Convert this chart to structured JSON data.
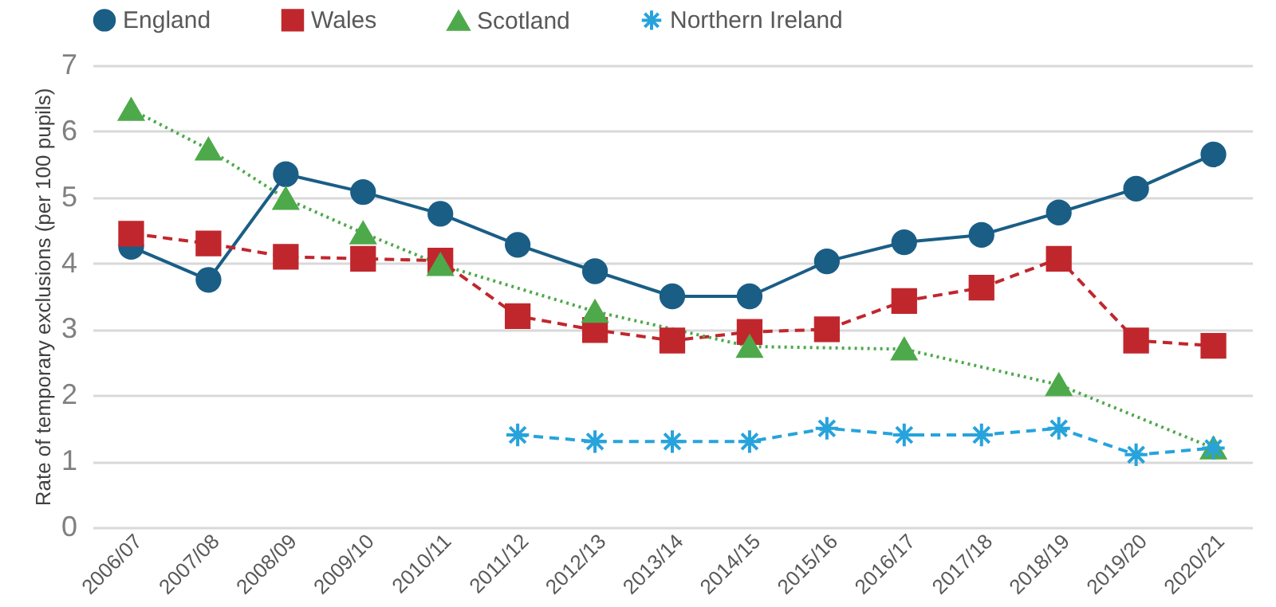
{
  "chart_data": {
    "type": "line",
    "ylabel": "Rate of temporary exclusions (per 100 pupils)",
    "categories": [
      "2006/07",
      "2007/08",
      "2008/09",
      "2009/10",
      "2010/11",
      "2011/12",
      "2012/13",
      "2013/14",
      "2014/15",
      "2015/16",
      "2016/17",
      "2017/18",
      "2018/19",
      "2019/20",
      "2020/21"
    ],
    "series": [
      {
        "name": "England",
        "color": "#1a5e86",
        "marker": "circle",
        "line_style": "solid",
        "values": [
          4.25,
          3.75,
          5.35,
          5.08,
          4.75,
          4.28,
          3.88,
          3.5,
          3.5,
          4.03,
          4.32,
          4.43,
          4.77,
          5.13,
          5.65
        ]
      },
      {
        "name": "Wales",
        "color": "#c0272d",
        "marker": "square",
        "line_style": "dashed",
        "values": [
          4.45,
          4.3,
          4.1,
          4.07,
          4.04,
          3.2,
          2.99,
          2.83,
          2.96,
          3.0,
          3.43,
          3.63,
          4.07,
          2.83,
          2.75
        ]
      },
      {
        "name": "Scotland",
        "color": "#4ea94b",
        "marker": "triangle",
        "line_style": "dotted",
        "values": [
          6.33,
          5.73,
          4.98,
          4.46,
          3.98,
          null,
          3.27,
          null,
          2.74,
          null,
          2.7,
          null,
          2.16,
          null,
          1.2
        ]
      },
      {
        "name": "Northern Ireland",
        "color": "#27a3dc",
        "marker": "cross",
        "line_style": "dashed",
        "values": [
          null,
          null,
          null,
          null,
          null,
          1.4,
          1.3,
          1.3,
          1.3,
          1.5,
          1.4,
          1.4,
          1.5,
          1.1,
          1.2
        ]
      }
    ],
    "ylim": [
      0,
      7
    ],
    "yticks": [
      0,
      1,
      2,
      3,
      4,
      5,
      6,
      7
    ],
    "grid": "y",
    "legend": "top"
  }
}
